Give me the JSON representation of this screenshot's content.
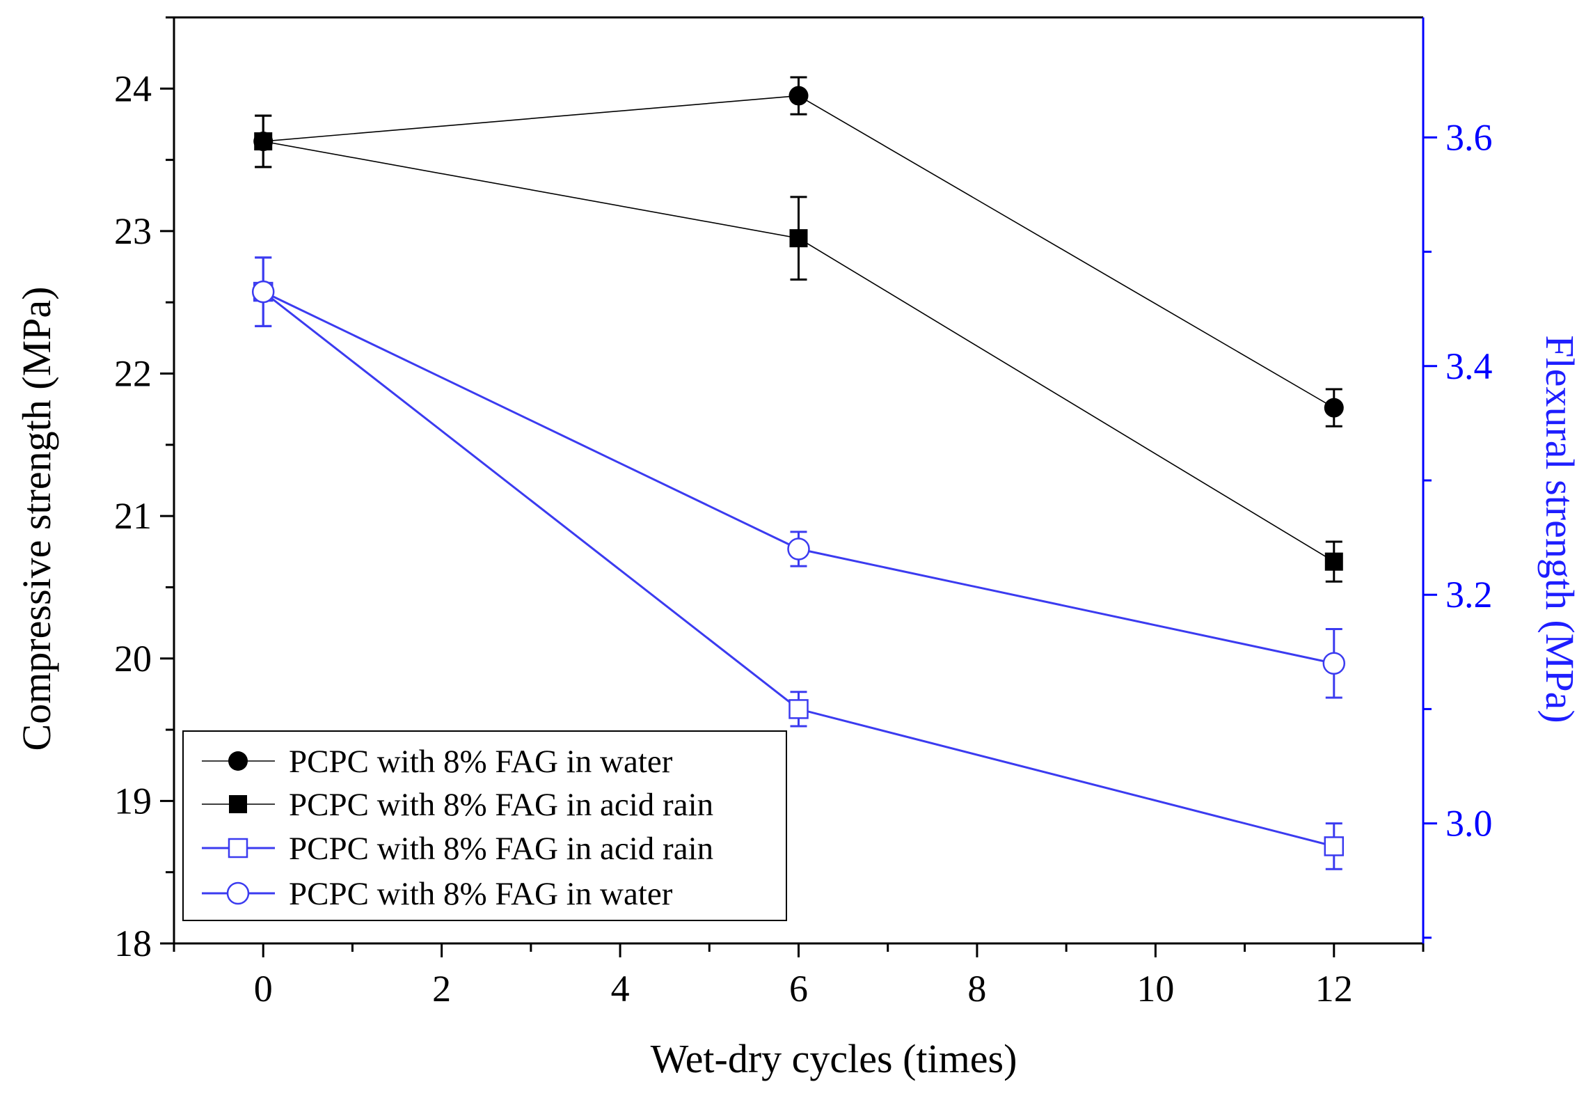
{
  "chart_data": {
    "type": "line",
    "xlabel": "Wet-dry cycles (times)",
    "ylabel_left": "Compressive strength (MPa)",
    "ylabel_right": "Flexural strength (MPa)",
    "xlim": [
      -1,
      13
    ],
    "ylim_left": [
      18,
      24.5
    ],
    "ylim_right": [
      2.895,
      3.705
    ],
    "x_ticks": [
      0,
      2,
      4,
      6,
      8,
      10,
      12
    ],
    "y_ticks_left": [
      18,
      19,
      20,
      21,
      22,
      23,
      24
    ],
    "y_ticks_right": [
      3.0,
      3.2,
      3.4,
      3.6
    ],
    "x_tick_labels": [
      "0",
      "2",
      "4",
      "6",
      "8",
      "10",
      "12"
    ],
    "y_tick_labels_left": [
      "18",
      "19",
      "20",
      "21",
      "22",
      "23",
      "24"
    ],
    "y_tick_labels_right": [
      "3.0",
      "3.2",
      "3.4",
      "3.6"
    ],
    "colors": {
      "left_axis": "#000000",
      "right_axis": "#0000ff",
      "blue_series": "#3b3bf0",
      "black_series": "#000000"
    },
    "series": [
      {
        "name": "PCPC with 8% FAG in water",
        "axis": "left",
        "marker": "filled-circle",
        "color": "#000000",
        "x": [
          0,
          6,
          12
        ],
        "y": [
          23.63,
          23.95,
          21.76
        ],
        "err": [
          0.18,
          0.13,
          0.13
        ]
      },
      {
        "name": "PCPC with 8% FAG in acid rain",
        "axis": "left",
        "marker": "filled-square",
        "color": "#000000",
        "x": [
          0,
          6,
          12
        ],
        "y": [
          23.63,
          22.95,
          20.68
        ],
        "err": [
          0.18,
          0.29,
          0.14
        ]
      },
      {
        "name": "PCPC with 8% FAG in acid rain",
        "axis": "right",
        "marker": "open-square",
        "color": "#3b3bf0",
        "x": [
          0,
          6,
          12
        ],
        "y": [
          3.465,
          3.1,
          2.98
        ],
        "err": [
          0.03,
          0.015,
          0.02
        ]
      },
      {
        "name": "PCPC with 8% FAG in water",
        "axis": "right",
        "marker": "open-circle",
        "color": "#3b3bf0",
        "x": [
          0,
          6,
          12
        ],
        "y": [
          3.465,
          3.24,
          3.14
        ],
        "err": [
          0.03,
          0.015,
          0.03
        ]
      }
    ]
  }
}
